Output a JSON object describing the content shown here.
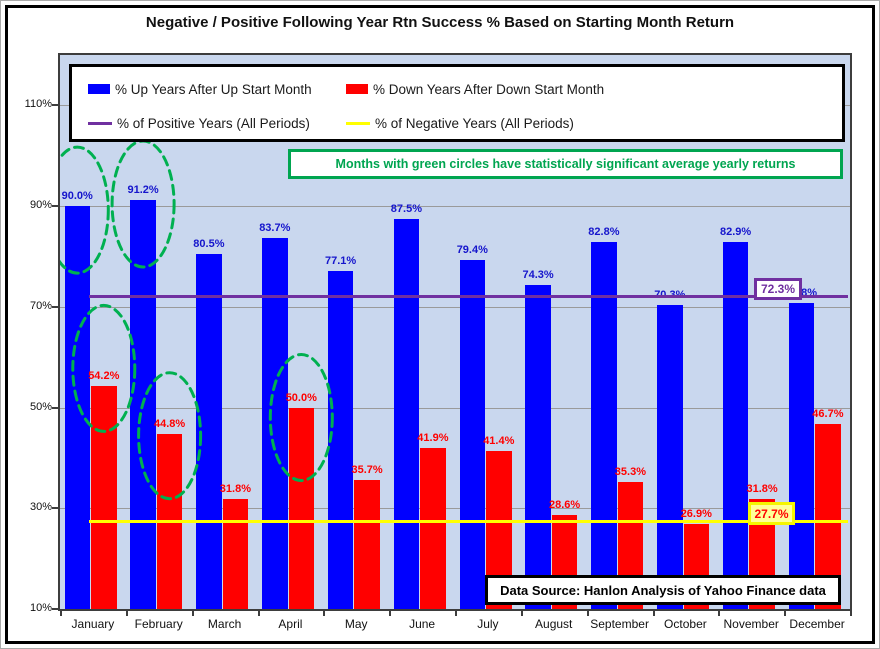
{
  "title": "Negative / Positive Following Year Rtn Success % Based on Starting Month Return",
  "legend": {
    "up_label": "% Up Years After Up Start Month",
    "down_label": "% Down Years After Down Start Month",
    "positive_label": "% of Positive Years (All Periods)",
    "negative_label": "% of Negative Years (All Periods)"
  },
  "annotation_text": "Months with green circles have statistically significant average yearly returns",
  "data_source_text": "Data Source: Hanlon Analysis of Yahoo Finance data",
  "colors": {
    "up_bar": "#0000FF",
    "down_bar": "#FF0000",
    "positive_line": "#7030A0",
    "negative_line": "#FFFF00",
    "annotation_green": "#00A550",
    "plot_background": "#C9D7EE",
    "up_value_text": "#1515CC",
    "down_value_text": "#FF0000"
  },
  "chart_data": {
    "type": "bar",
    "title": "Negative / Positive Following Year Rtn Success % Based on Starting Month Return",
    "categories": [
      "January",
      "February",
      "March",
      "April",
      "May",
      "June",
      "July",
      "August",
      "September",
      "October",
      "November",
      "December"
    ],
    "series": [
      {
        "name": "% Up Years After Up Start Month",
        "color": "#0000FF",
        "values": [
          90.0,
          91.2,
          80.5,
          83.7,
          77.1,
          87.5,
          79.4,
          74.3,
          82.8,
          70.3,
          82.9,
          70.8
        ]
      },
      {
        "name": "% Down Years After Down Start Month",
        "color": "#FF0000",
        "values": [
          54.2,
          44.8,
          31.8,
          50.0,
          35.7,
          41.9,
          41.4,
          28.6,
          35.3,
          26.9,
          31.8,
          46.7
        ]
      }
    ],
    "reference_lines": [
      {
        "name": "% of Positive Years (All Periods)",
        "value": 72.3,
        "label": "72.3%",
        "color": "#7030A0"
      },
      {
        "name": "% of Negative Years (All Periods)",
        "value": 27.7,
        "label": "27.7%",
        "color": "#FFFF00"
      }
    ],
    "y_ticks": [
      {
        "label": "110%",
        "value": 110
      },
      {
        "label": "90%",
        "value": 90
      },
      {
        "label": "70%",
        "value": 70
      },
      {
        "label": "50%",
        "value": 50
      },
      {
        "label": "30%",
        "value": 30
      },
      {
        "label": "10%",
        "value": 10
      }
    ],
    "gridline_values": [
      30,
      50,
      70,
      90,
      110
    ],
    "ylim": [
      10,
      120
    ],
    "grid": true,
    "legend_position": "top",
    "value_label_format": "one_decimal_percent",
    "significant_circles": [
      {
        "series": 0,
        "month": 0
      },
      {
        "series": 0,
        "month": 1
      },
      {
        "series": 1,
        "month": 0
      },
      {
        "series": 1,
        "month": 1
      },
      {
        "series": 1,
        "month": 3
      }
    ]
  }
}
